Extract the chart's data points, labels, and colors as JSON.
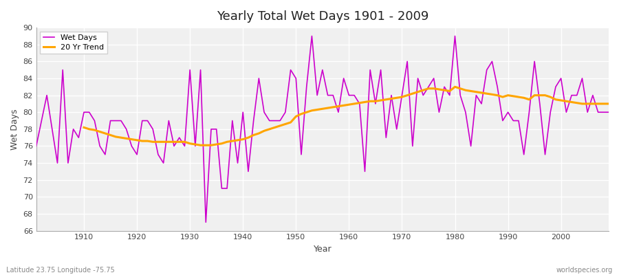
{
  "title": "Yearly Total Wet Days 1901 - 2009",
  "xlabel": "Year",
  "ylabel": "Wet Days",
  "subtitle": "Latitude 23.75 Longitude -75.75",
  "watermark": "worldspecies.org",
  "ylim": [
    66,
    90
  ],
  "yticks": [
    66,
    68,
    70,
    72,
    74,
    76,
    78,
    80,
    82,
    84,
    86,
    88,
    90
  ],
  "line_color": "#cc00cc",
  "trend_color": "#ffa500",
  "bg_color": "#f0f0f0",
  "years": [
    1901,
    1902,
    1903,
    1904,
    1905,
    1906,
    1907,
    1908,
    1909,
    1910,
    1911,
    1912,
    1913,
    1914,
    1915,
    1916,
    1917,
    1918,
    1919,
    1920,
    1921,
    1922,
    1923,
    1924,
    1925,
    1926,
    1927,
    1928,
    1929,
    1930,
    1931,
    1932,
    1933,
    1934,
    1935,
    1936,
    1937,
    1938,
    1939,
    1940,
    1941,
    1942,
    1943,
    1944,
    1945,
    1946,
    1947,
    1948,
    1949,
    1950,
    1951,
    1952,
    1953,
    1954,
    1955,
    1956,
    1957,
    1958,
    1959,
    1960,
    1961,
    1962,
    1963,
    1964,
    1965,
    1966,
    1967,
    1968,
    1969,
    1970,
    1971,
    1972,
    1973,
    1974,
    1975,
    1976,
    1977,
    1978,
    1979,
    1980,
    1981,
    1982,
    1983,
    1984,
    1985,
    1986,
    1987,
    1988,
    1989,
    1990,
    1991,
    1992,
    1993,
    1994,
    1995,
    1996,
    1997,
    1998,
    1999,
    2000,
    2001,
    2002,
    2003,
    2004,
    2005,
    2006,
    2007,
    2008,
    2009
  ],
  "wet_days": [
    76,
    79,
    82,
    78,
    74,
    85,
    74,
    78,
    77,
    80,
    80,
    79,
    76,
    75,
    79,
    79,
    79,
    78,
    76,
    75,
    79,
    79,
    78,
    75,
    74,
    79,
    76,
    77,
    76,
    85,
    76,
    85,
    67,
    78,
    78,
    71,
    71,
    79,
    74,
    80,
    73,
    79,
    84,
    80,
    79,
    79,
    79,
    80,
    85,
    84,
    75,
    83,
    89,
    82,
    85,
    82,
    82,
    80,
    84,
    82,
    82,
    81,
    73,
    85,
    81,
    85,
    77,
    82,
    78,
    82,
    86,
    76,
    84,
    82,
    83,
    84,
    80,
    83,
    82,
    89,
    82,
    80,
    76,
    82,
    81,
    85,
    86,
    83,
    79,
    80,
    79,
    79,
    75,
    80,
    86,
    81,
    75,
    80,
    83,
    84,
    80,
    82,
    82,
    84,
    80,
    82,
    80,
    80,
    80
  ],
  "trend_years": [
    1910,
    1911,
    1912,
    1913,
    1914,
    1915,
    1916,
    1917,
    1918,
    1919,
    1920,
    1921,
    1922,
    1923,
    1924,
    1925,
    1926,
    1927,
    1928,
    1929,
    1930,
    1931,
    1932,
    1933,
    1934,
    1935,
    1936,
    1937,
    1938,
    1939,
    1940,
    1941,
    1942,
    1943,
    1944,
    1945,
    1946,
    1947,
    1948,
    1949,
    1950,
    1951,
    1952,
    1953,
    1954,
    1955,
    1956,
    1957,
    1958,
    1959,
    1960,
    1961,
    1962,
    1963,
    1964,
    1965,
    1966,
    1967,
    1968,
    1969,
    1970,
    1971,
    1972,
    1973,
    1974,
    1975,
    1976,
    1977,
    1978,
    1979,
    1980,
    1981,
    1982,
    1983,
    1984,
    1985,
    1986,
    1987,
    1988,
    1989,
    1990,
    1991,
    1992,
    1993,
    1994,
    1995,
    1996,
    1997,
    1998,
    1999,
    2000,
    2001,
    2002,
    2003,
    2004,
    2005,
    2006,
    2007,
    2008,
    2009
  ],
  "trend_values": [
    78.2,
    78.0,
    77.9,
    77.7,
    77.5,
    77.3,
    77.1,
    77.0,
    76.9,
    76.8,
    76.7,
    76.6,
    76.6,
    76.5,
    76.5,
    76.5,
    76.5,
    76.5,
    76.5,
    76.5,
    76.3,
    76.2,
    76.1,
    76.1,
    76.1,
    76.2,
    76.3,
    76.5,
    76.6,
    76.7,
    76.8,
    77.0,
    77.3,
    77.5,
    77.8,
    78.0,
    78.2,
    78.4,
    78.6,
    78.8,
    79.5,
    79.8,
    80.0,
    80.2,
    80.3,
    80.4,
    80.5,
    80.6,
    80.7,
    80.8,
    80.9,
    81.0,
    81.1,
    81.2,
    81.3,
    81.3,
    81.4,
    81.5,
    81.6,
    81.7,
    81.8,
    82.0,
    82.2,
    82.4,
    82.6,
    82.8,
    82.8,
    82.7,
    82.6,
    82.5,
    83.0,
    82.8,
    82.6,
    82.5,
    82.4,
    82.3,
    82.2,
    82.1,
    82.0,
    81.8,
    82.0,
    81.9,
    81.8,
    81.7,
    81.5,
    82.0,
    82.0,
    82.0,
    81.8,
    81.5,
    81.4,
    81.3,
    81.2,
    81.1,
    81.0,
    81.0,
    81.0,
    81.0,
    81.0,
    81.0
  ]
}
